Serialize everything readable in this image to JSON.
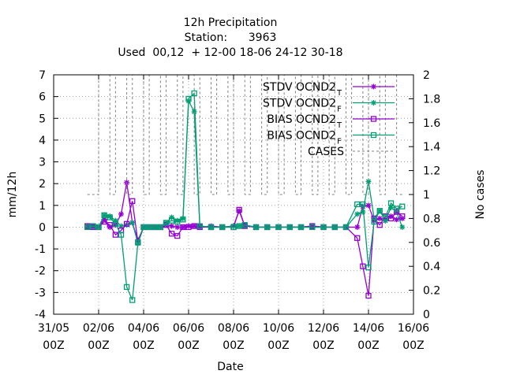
{
  "chart_data": {
    "type": "line",
    "title_lines": [
      "12h Precipitation",
      "Station:      3963",
      "Used  00,12  + 12-00 18-06 24-12 30-18"
    ],
    "xlabel": "Date",
    "ylabel": "mm/12h",
    "y2label": "No cases",
    "xlim": [
      0,
      16
    ],
    "ylim": [
      -4,
      7
    ],
    "y2lim": [
      0,
      2
    ],
    "x_ticks": [
      {
        "x": 0,
        "l1": "31/05",
        "l2": "00Z"
      },
      {
        "x": 2,
        "l1": "02/06",
        "l2": "00Z"
      },
      {
        "x": 4,
        "l1": "04/06",
        "l2": "00Z"
      },
      {
        "x": 6,
        "l1": "06/06",
        "l2": "00Z"
      },
      {
        "x": 8,
        "l1": "08/06",
        "l2": "00Z"
      },
      {
        "x": 10,
        "l1": "10/06",
        "l2": "00Z"
      },
      {
        "x": 12,
        "l1": "12/06",
        "l2": "00Z"
      },
      {
        "x": 14,
        "l1": "14/06",
        "l2": "00Z"
      },
      {
        "x": 16,
        "l1": "16/06",
        "l2": "00Z"
      }
    ],
    "y_ticks": [
      -4,
      -3,
      -2,
      -1,
      0,
      1,
      2,
      3,
      4,
      5,
      6,
      7
    ],
    "y2_ticks": [
      0,
      0.2,
      0.4,
      0.6,
      0.8,
      1,
      1.2,
      1.4,
      1.6,
      1.8,
      2
    ],
    "grid": true,
    "legend_position": "top-right",
    "series": [
      {
        "name": "STDV OCND2",
        "sub": "T",
        "color": "#9400d3",
        "marker": "star",
        "dash": "",
        "axis": "y",
        "x": [
          1.5,
          1.75,
          2.0,
          2.25,
          2.5,
          2.75,
          3.0,
          3.25,
          3.5,
          3.75,
          4.0,
          4.25,
          4.5,
          4.75,
          5.0,
          5.25,
          5.5,
          5.75,
          6.0,
          6.25,
          6.5,
          7.0,
          7.5,
          8.0,
          8.25,
          8.5,
          9.0,
          9.5,
          10.0,
          10.5,
          11.0,
          11.5,
          12.0,
          12.5,
          13.0,
          13.5,
          13.75,
          14.0,
          14.25,
          14.5,
          14.75,
          15.0,
          15.25,
          15.5
        ],
        "y": [
          0.05,
          0.0,
          0.0,
          0.35,
          0.0,
          0.1,
          0.6,
          2.05,
          0.2,
          -0.6,
          0.0,
          0.0,
          0.0,
          0.0,
          0.1,
          0.05,
          0.0,
          0.0,
          0.05,
          0.05,
          0.0,
          0.05,
          0.0,
          0.05,
          0.75,
          0.05,
          0.0,
          0.0,
          0.0,
          0.0,
          0.0,
          0.05,
          0.0,
          0.0,
          0.0,
          0.0,
          0.95,
          1.0,
          0.3,
          0.4,
          0.3,
          0.5,
          0.35,
          0.4
        ]
      },
      {
        "name": "STDV OCND2",
        "sub": "F",
        "color": "#009e73",
        "marker": "star",
        "dash": "",
        "axis": "y",
        "x": [
          1.5,
          1.75,
          2.0,
          2.25,
          2.5,
          2.75,
          3.0,
          3.25,
          3.5,
          3.75,
          4.0,
          4.25,
          4.5,
          4.75,
          5.0,
          5.25,
          5.5,
          5.75,
          6.0,
          6.25,
          6.5,
          7.0,
          7.5,
          8.0,
          8.25,
          8.5,
          9.0,
          9.5,
          10.0,
          10.5,
          11.0,
          11.5,
          12.0,
          12.5,
          13.0,
          13.5,
          13.75,
          14.0,
          14.25,
          14.5,
          14.75,
          15.0,
          15.25,
          15.5
        ],
        "y": [
          0.0,
          0.05,
          0.0,
          0.55,
          0.5,
          0.3,
          0.05,
          0.1,
          0.2,
          -0.75,
          0.0,
          0.0,
          0.0,
          0.0,
          0.2,
          0.45,
          0.3,
          0.4,
          5.8,
          5.3,
          0.05,
          0.0,
          0.0,
          0.05,
          0.05,
          0.1,
          0.0,
          0.0,
          0.0,
          0.0,
          0.0,
          0.0,
          0.0,
          0.0,
          0.0,
          0.6,
          0.7,
          2.1,
          0.4,
          0.75,
          0.3,
          0.9,
          0.7,
          0.0
        ]
      },
      {
        "name": "BIAS OCND2",
        "sub": "T",
        "color": "#9400d3",
        "marker": "square",
        "dash": "",
        "axis": "y",
        "x": [
          1.5,
          1.75,
          2.0,
          2.25,
          2.5,
          2.75,
          3.0,
          3.25,
          3.5,
          3.75,
          4.0,
          4.25,
          4.5,
          4.75,
          5.0,
          5.25,
          5.5,
          5.75,
          6.0,
          6.25,
          6.5,
          7.0,
          7.5,
          8.0,
          8.25,
          8.5,
          9.0,
          9.5,
          10.0,
          10.5,
          11.0,
          11.5,
          12.0,
          12.5,
          13.0,
          13.5,
          13.75,
          14.0,
          14.25,
          14.5,
          14.75,
          15.0,
          15.25,
          15.5
        ],
        "y": [
          0.05,
          0.0,
          0.0,
          0.25,
          0.1,
          -0.35,
          -0.15,
          0.15,
          1.2,
          -0.7,
          0.0,
          0.0,
          0.0,
          0.0,
          0.1,
          -0.3,
          -0.4,
          0.0,
          0.0,
          0.05,
          0.0,
          0.0,
          0.0,
          0.0,
          0.8,
          0.05,
          0.0,
          0.0,
          0.0,
          0.0,
          0.0,
          0.05,
          0.0,
          0.0,
          0.0,
          -0.5,
          -1.8,
          -3.15,
          0.4,
          0.1,
          0.5,
          0.4,
          0.7,
          0.5
        ]
      },
      {
        "name": "BIAS OCND2",
        "sub": "F",
        "color": "#009e73",
        "marker": "square",
        "dash": "",
        "axis": "y",
        "x": [
          1.5,
          1.75,
          2.0,
          2.25,
          2.5,
          2.75,
          3.0,
          3.25,
          3.5,
          3.75,
          4.0,
          4.25,
          4.5,
          4.75,
          5.0,
          5.25,
          5.5,
          5.75,
          6.0,
          6.25,
          6.5,
          7.0,
          7.5,
          8.0,
          8.25,
          8.5,
          9.0,
          9.5,
          10.0,
          10.5,
          11.0,
          11.5,
          12.0,
          12.5,
          13.0,
          13.5,
          13.75,
          14.0,
          14.25,
          14.5,
          14.75,
          15.0,
          15.25,
          15.5
        ],
        "y": [
          0.0,
          0.05,
          0.0,
          0.55,
          0.45,
          0.15,
          -0.35,
          -2.75,
          -3.35,
          -0.7,
          0.0,
          0.0,
          0.0,
          0.0,
          0.2,
          0.3,
          0.25,
          0.35,
          5.9,
          6.15,
          0.05,
          0.0,
          0.0,
          0.0,
          0.05,
          0.1,
          0.0,
          0.0,
          0.0,
          0.0,
          0.0,
          0.0,
          0.0,
          0.0,
          0.0,
          1.05,
          1.05,
          -1.85,
          0.25,
          0.75,
          0.45,
          1.1,
          0.85,
          0.95
        ]
      },
      {
        "name": "CASES",
        "sub": "",
        "color": "#808080",
        "marker": "none",
        "dash": "3,3",
        "axis": "y2",
        "x": [
          1.5,
          1.75,
          2.0,
          2.25,
          2.5,
          2.75,
          3.0,
          3.25,
          3.5,
          3.75,
          4.0,
          4.25,
          4.5,
          4.75,
          5.0,
          5.25,
          5.5,
          5.75,
          6.0,
          6.25,
          6.5,
          6.75,
          7.0,
          7.25,
          7.5,
          7.75,
          8.0,
          8.25,
          8.5,
          8.75,
          9.0,
          9.25,
          9.5,
          9.75,
          10.0,
          10.25,
          10.5,
          10.75,
          11.0,
          11.25,
          11.5,
          11.75,
          12.0,
          12.25,
          12.5,
          12.75,
          13.0,
          13.25,
          13.5,
          13.75,
          14.0,
          14.25,
          14.5,
          14.75,
          15.0,
          15.25,
          15.5
        ],
        "y": [
          1.0,
          1.0,
          2.0,
          2.0,
          1.0,
          2.0,
          2.0,
          1.0,
          2.0,
          2.0,
          1.0,
          2.0,
          2.0,
          1.0,
          2.0,
          2.0,
          1.0,
          2.0,
          2.0,
          1.0,
          2.0,
          2.0,
          1.0,
          2.0,
          2.0,
          1.0,
          2.0,
          2.0,
          1.0,
          2.0,
          2.0,
          1.0,
          2.0,
          2.0,
          1.0,
          2.0,
          2.0,
          1.0,
          2.0,
          2.0,
          1.0,
          2.0,
          2.0,
          1.0,
          2.0,
          2.0,
          1.0,
          2.0,
          2.0,
          1.0,
          2.0,
          2.0,
          1.0,
          2.0,
          2.0,
          1.0,
          1.0
        ]
      }
    ]
  }
}
